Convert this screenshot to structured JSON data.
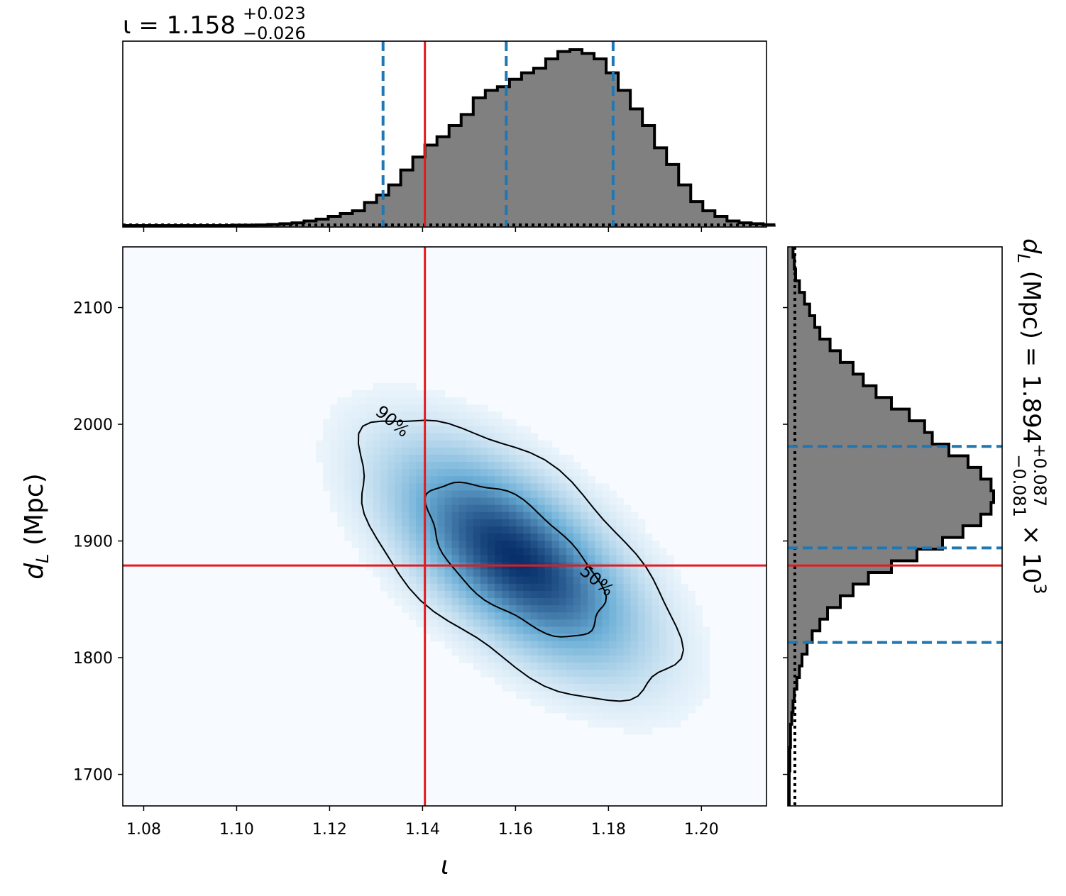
{
  "colors": {
    "truth": "#e41a1c",
    "quantile": "#1f77b4",
    "hist_fill": "#808080",
    "hist_edge": "#000000",
    "density_low": "#f7fbff",
    "density_high": "#08306b",
    "prior": "#000000"
  },
  "chart_data": [
    {
      "id": "marginal-iota",
      "type": "histogram",
      "title_param": "ι",
      "title_eq": " = ",
      "title_median": "1.158",
      "title_plus": "+0.023",
      "title_minus": "−0.026",
      "xlim": [
        1.0755,
        1.214
      ],
      "truth": 1.1405,
      "quantiles": [
        1.1315,
        1.158,
        1.181
      ],
      "bin_edges_start": 1.0755,
      "bin_width": 0.0026,
      "counts": [
        0,
        0,
        0,
        0,
        0,
        0,
        0,
        0,
        0,
        0.5,
        0.5,
        0.8,
        1.2,
        2,
        3,
        5,
        7,
        10,
        13,
        16,
        25,
        33,
        44,
        60,
        74,
        87,
        96,
        108,
        120,
        138,
        146,
        150,
        158,
        165,
        170,
        180,
        188,
        190,
        186,
        180,
        165,
        146,
        126,
        108,
        84,
        66,
        44,
        26,
        16,
        10,
        5,
        3,
        2,
        1
      ]
    },
    {
      "id": "joint-iota-dL",
      "type": "heatmap",
      "xlabel": "ι",
      "ylabel_main": "d",
      "ylabel_sub": "L",
      "ylabel_unit": " (Mpc)",
      "xlim": [
        1.0755,
        1.214
      ],
      "ylim": [
        1673,
        2152
      ],
      "xticks": [
        "1.08",
        "1.10",
        "1.12",
        "1.14",
        "1.16",
        "1.18",
        "1.20"
      ],
      "yticks": [
        "1700",
        "1800",
        "1900",
        "2000",
        "2100"
      ],
      "truth_x": 1.1405,
      "truth_y": 1879,
      "mean": [
        1.16,
        1885
      ],
      "std": [
        0.016,
        56
      ],
      "correlation": -0.62,
      "contour_levels": [
        {
          "percent": 0.5,
          "label": "50%"
        },
        {
          "percent": 0.9,
          "label": "90%"
        }
      ]
    },
    {
      "id": "marginal-dL",
      "type": "histogram",
      "orientation": "horizontal",
      "title_param": "d",
      "title_sub": "L",
      "title_unit": " (Mpc) = ",
      "title_median": "1.894",
      "title_plus": "+0.087",
      "title_minus": "−0.081",
      "title_scale": " × 10",
      "title_exp": "3",
      "ylim": [
        1673,
        2152
      ],
      "truth": 1879,
      "quantiles": [
        1813,
        1894,
        1981
      ],
      "bin_edges_start": 1673,
      "bin_width": 10,
      "counts": [
        0,
        0,
        0,
        0.5,
        0.5,
        1,
        1,
        2,
        3,
        4,
        6,
        8,
        10,
        14,
        18,
        24,
        30,
        40,
        50,
        62,
        80,
        100,
        120,
        136,
        150,
        158,
        160,
        158,
        150,
        140,
        125,
        112,
        106,
        94,
        80,
        68,
        58,
        50,
        40,
        32,
        24,
        20,
        16,
        12,
        8,
        5,
        4,
        3,
        2,
        1,
        0,
        0
      ]
    }
  ]
}
